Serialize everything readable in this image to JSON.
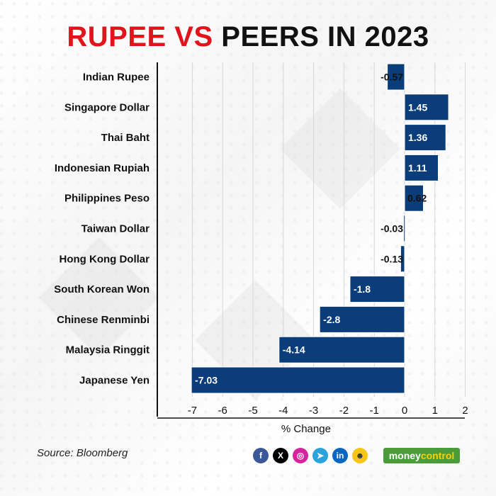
{
  "title_part1": "RUPEE VS",
  "title_part2": "PEERS IN 2023",
  "source": "Source: Bloomberg",
  "brand_part1": "money",
  "brand_part2": "control",
  "social_icons": [
    "facebook-icon",
    "x-icon",
    "instagram-icon",
    "telegram-icon",
    "linkedin-icon",
    "koo-icon"
  ],
  "colors": {
    "bar": "#0a3d7a",
    "title_red": "#e0141b",
    "brand_green": "#4a9b3a"
  },
  "chart_data": {
    "type": "bar",
    "orientation": "horizontal",
    "categories": [
      "Indian Rupee",
      "Singapore Dollar",
      "Thai Baht",
      "Indonesian Rupiah",
      "Philippines Peso",
      "Taiwan Dollar",
      "Hong Kong Dollar",
      "South Korean Won",
      "Chinese Renminbi",
      "Malaysia Ringgit",
      "Japanese Yen"
    ],
    "values": [
      -0.57,
      1.45,
      1.36,
      1.11,
      0.62,
      -0.03,
      -0.13,
      -1.8,
      -2.8,
      -4.14,
      -7.03
    ],
    "value_labels": [
      "-0.57",
      "1.45",
      "1.36",
      "1.11",
      "0.62",
      "-0.03",
      "-0.13",
      "-1.8",
      "-2.8",
      "-4.14",
      "-7.03"
    ],
    "xlabel": "% Change",
    "xlim": [
      -7.5,
      2.0
    ],
    "xticks": [
      -7,
      -6,
      -5,
      -4,
      -3,
      -2,
      -1,
      0,
      1,
      2
    ],
    "grid": true
  }
}
